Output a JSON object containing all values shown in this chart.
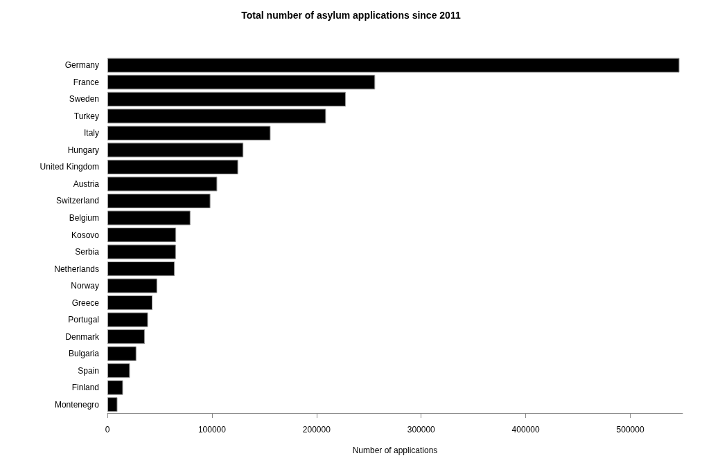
{
  "chart_data": {
    "type": "bar",
    "orientation": "horizontal",
    "title": "Total number of asylum applications since 2011",
    "xlabel": "Number of applications",
    "categories": [
      "Germany",
      "France",
      "Sweden",
      "Turkey",
      "Italy",
      "Hungary",
      "United Kingdom",
      "Austria",
      "Switzerland",
      "Belgium",
      "Kosovo",
      "Serbia",
      "Netherlands",
      "Norway",
      "Greece",
      "Portugal",
      "Denmark",
      "Bulgaria",
      "Spain",
      "Finland",
      "Montenegro"
    ],
    "values": [
      547000,
      256000,
      228000,
      209000,
      156000,
      130000,
      125000,
      105000,
      98500,
      79400,
      65700,
      65500,
      64400,
      47600,
      43100,
      38800,
      35800,
      27700,
      21500,
      14900,
      9600
    ],
    "color": "#000000",
    "xlim": [
      0,
      550000
    ],
    "xticks": [
      0,
      100000,
      200000,
      300000,
      400000,
      500000
    ],
    "grid": false
  }
}
